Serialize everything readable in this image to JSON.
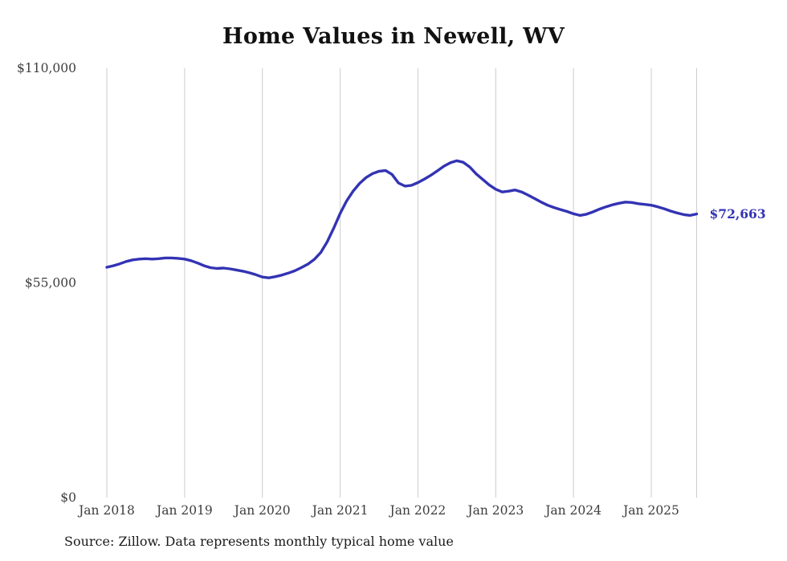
{
  "chart": {
    "title": "Home Values in Newell, WV",
    "source": "Source: Zillow. Data represents monthly typical home value",
    "end_label": "$72,663",
    "line_color": "#3333b4",
    "grid_color": "#cccccc",
    "tick_text_color": "#3d3d3d"
  },
  "chart_data": {
    "type": "line",
    "title": "Home Values in Newell, WV",
    "series_name": "Typical home value (monthly)",
    "x_start": "Jan 2018",
    "x_end": "Aug 2025",
    "x_interval": "monthly",
    "x_tick_labels": [
      "Jan 2018",
      "Jan 2019",
      "Jan 2020",
      "Jan 2021",
      "Jan 2022",
      "Jan 2023",
      "Jan 2024",
      "Jan 2025"
    ],
    "y_ticks": [
      {
        "value": 0,
        "label": "$0"
      },
      {
        "value": 55000,
        "label": "$55,000"
      },
      {
        "value": 110000,
        "label": "$110,000"
      }
    ],
    "ylim": [
      0,
      110000
    ],
    "grid": "vertical-only",
    "legend": "none",
    "final_value": 72663,
    "values": [
      59000,
      59400,
      59900,
      60500,
      60900,
      61100,
      61200,
      61100,
      61200,
      61400,
      61400,
      61300,
      61100,
      60700,
      60100,
      59400,
      58900,
      58700,
      58800,
      58600,
      58300,
      58000,
      57600,
      57100,
      56500,
      56300,
      56600,
      57000,
      57500,
      58100,
      58900,
      59800,
      61000,
      62800,
      65500,
      69000,
      72800,
      76000,
      78500,
      80500,
      82000,
      83000,
      83600,
      83800,
      82800,
      80600,
      79800,
      80000,
      80700,
      81600,
      82600,
      83700,
      84900,
      85800,
      86300,
      85900,
      84700,
      82900,
      81500,
      80100,
      79000,
      78300,
      78500,
      78800,
      78300,
      77500,
      76600,
      75700,
      74900,
      74300,
      73800,
      73300,
      72700,
      72300,
      72600,
      73200,
      73900,
      74500,
      75000,
      75400,
      75700,
      75600,
      75300,
      75100,
      74900,
      74500,
      74000,
      73400,
      72900,
      72500,
      72300,
      72663
    ]
  }
}
